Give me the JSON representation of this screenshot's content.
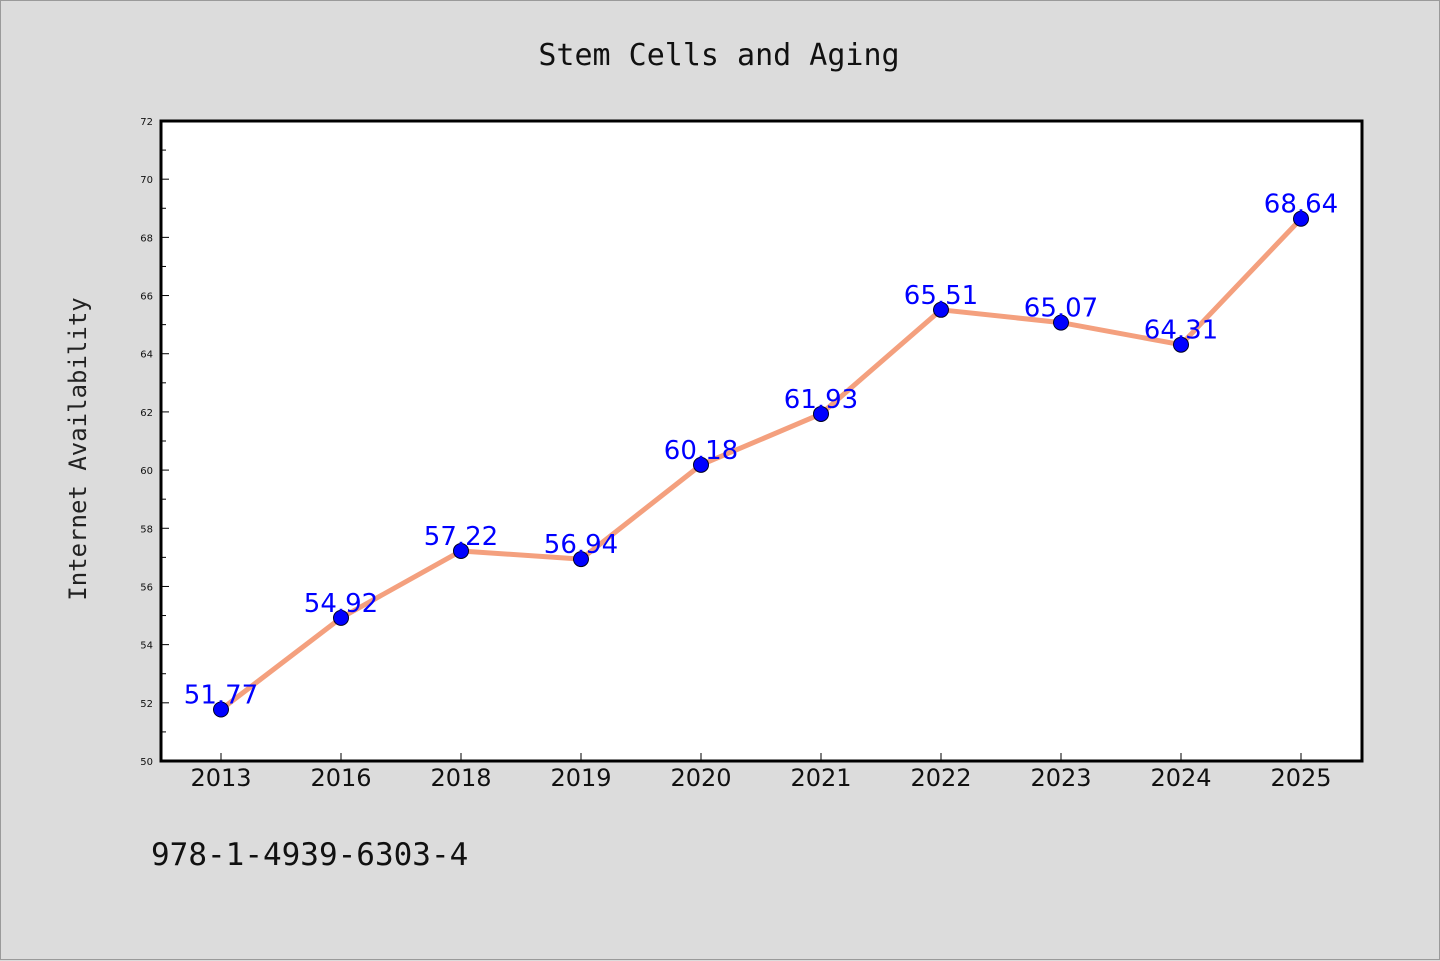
{
  "chart_data": {
    "type": "line",
    "title": "Stem Cells and Aging",
    "xlabel": "",
    "ylabel": "Internet Availability",
    "categories": [
      "2013",
      "2016",
      "2018",
      "2019",
      "2020",
      "2021",
      "2022",
      "2023",
      "2024",
      "2025"
    ],
    "values": [
      51.77,
      54.92,
      57.22,
      56.94,
      60.18,
      61.93,
      65.51,
      65.07,
      64.31,
      68.64
    ],
    "data_labels": [
      "51.77",
      "54.92",
      "57.22",
      "56.94",
      "60.18",
      "61.93",
      "65.51",
      "65.07",
      "64.31",
      "68.64"
    ],
    "ylim": [
      50,
      72
    ],
    "yticks": [
      "50",
      "52",
      "54",
      "56",
      "58",
      "60",
      "62",
      "64",
      "66",
      "68",
      "70",
      "72"
    ],
    "grid": false,
    "legend": "none",
    "colors": {
      "line": "#f4a07e",
      "marker": "#0000ff",
      "data_label": "#0000ff",
      "plot_background": "#ffffff",
      "figure_background": "#dcdcdc"
    }
  },
  "footnote": "978-1-4939-6303-4"
}
